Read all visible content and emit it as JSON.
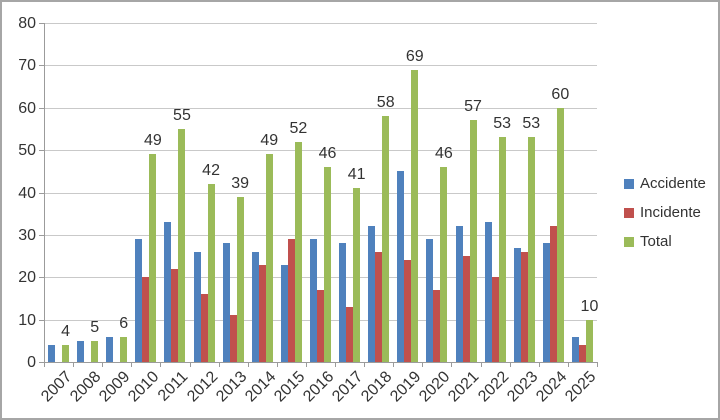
{
  "chart_data": {
    "type": "bar",
    "title": "",
    "xlabel": "",
    "ylabel": "",
    "categories": [
      "2007",
      "2008",
      "2009",
      "2010",
      "2011",
      "2012",
      "2013",
      "2014",
      "2015",
      "2016",
      "2017",
      "2018",
      "2019",
      "2020",
      "2021",
      "2022",
      "2023",
      "2024",
      "2025"
    ],
    "series": [
      {
        "name": "Accidente",
        "color": "#4F81BD",
        "values": [
          4,
          5,
          6,
          29,
          33,
          26,
          28,
          26,
          23,
          29,
          28,
          32,
          45,
          29,
          32,
          33,
          27,
          28,
          6
        ]
      },
      {
        "name": "Incidente",
        "color": "#C0504D",
        "values": [
          0,
          0,
          0,
          20,
          22,
          16,
          11,
          23,
          29,
          17,
          13,
          26,
          24,
          17,
          25,
          20,
          26,
          32,
          4
        ]
      },
      {
        "name": "Total",
        "color": "#9BBB59",
        "values": [
          4,
          5,
          6,
          49,
          55,
          42,
          39,
          49,
          52,
          46,
          41,
          58,
          69,
          46,
          57,
          53,
          53,
          60,
          10
        ],
        "data_labels": [
          4,
          5,
          6,
          49,
          55,
          42,
          39,
          49,
          52,
          46,
          41,
          58,
          69,
          46,
          57,
          53,
          53,
          60,
          10
        ]
      }
    ],
    "ylim": [
      0,
      80
    ],
    "ytick_step": 10,
    "y_tick_labels": [
      "0",
      "10",
      "20",
      "30",
      "40",
      "50",
      "60",
      "70",
      "80"
    ],
    "grid": true,
    "legend_position": "right",
    "legend_items": [
      {
        "label": "Accidente",
        "color": "#4F81BD"
      },
      {
        "label": "Incidente",
        "color": "#C0504D"
      },
      {
        "label": "Total",
        "color": "#9BBB59"
      }
    ],
    "colors": {
      "gridline": "#c9c9c9",
      "axis": "#9b9b9b",
      "text": "#333333",
      "background": "#ffffff",
      "frame_border": "#a6a6a6"
    }
  }
}
